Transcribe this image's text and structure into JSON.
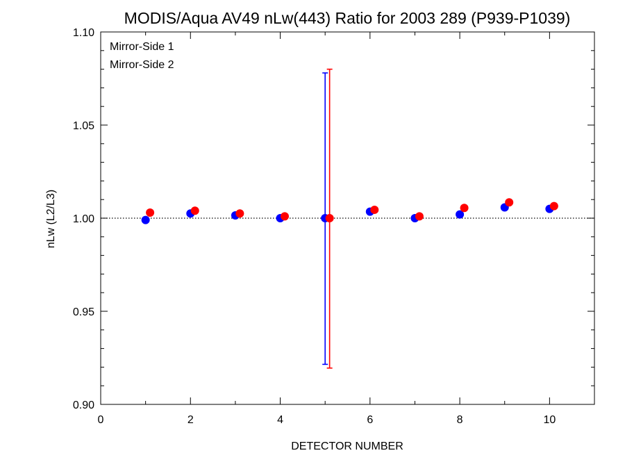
{
  "chart_data": {
    "type": "scatter",
    "title": "MODIS/Aqua AV49 nLw(443) Ratio for 2003 289 (P939-P1039)",
    "xlabel": "DETECTOR NUMBER",
    "ylabel": "nLw (L2/L3)",
    "xlim": [
      0,
      11
    ],
    "ylim": [
      0.9,
      1.1
    ],
    "x_ticks": [
      0,
      2,
      4,
      6,
      8,
      10
    ],
    "x_tick_labels": [
      "0",
      "2",
      "4",
      "6",
      "8",
      "10"
    ],
    "x_minor_ticks": [
      1,
      3,
      5,
      7,
      9
    ],
    "y_ticks": [
      0.9,
      0.95,
      1.0,
      1.05,
      1.1
    ],
    "y_tick_labels": [
      "0.90",
      "0.95",
      "1.00",
      "1.05",
      "1.10"
    ],
    "y_minor_step": 0.01,
    "reference_line": {
      "y": 1.0,
      "style": "dotted"
    },
    "legend_position": "top-left",
    "series": [
      {
        "name": "Mirror-Side 1",
        "color": "#0000ff",
        "x": [
          1,
          2,
          3,
          4,
          5,
          6,
          7,
          8,
          9,
          10
        ],
        "y": [
          0.999,
          1.0025,
          1.0015,
          1.0,
          1.0,
          1.0035,
          1.0,
          1.002,
          1.0058,
          1.005
        ],
        "error_bars": [
          {
            "x": 5,
            "low": 0.9215,
            "high": 1.078
          }
        ]
      },
      {
        "name": "Mirror-Side 2",
        "color": "#ff0000",
        "x": [
          1.1,
          2.1,
          3.1,
          4.1,
          5.1,
          6.1,
          7.1,
          8.1,
          9.1,
          10.1
        ],
        "y": [
          1.003,
          1.004,
          1.0025,
          1.001,
          1.0,
          1.0045,
          1.001,
          1.0055,
          1.0085,
          1.0065
        ],
        "error_bars": [
          {
            "x": 5.1,
            "low": 0.9195,
            "high": 1.08
          }
        ]
      }
    ]
  }
}
